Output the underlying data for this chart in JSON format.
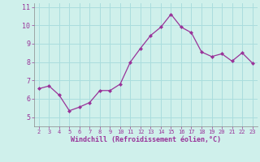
{
  "x": [
    2,
    3,
    4,
    5,
    6,
    7,
    8,
    9,
    10,
    11,
    12,
    13,
    14,
    15,
    16,
    17,
    18,
    19,
    20,
    21,
    22,
    23
  ],
  "y": [
    6.55,
    6.7,
    6.2,
    5.35,
    5.55,
    5.8,
    6.45,
    6.45,
    6.8,
    8.0,
    8.75,
    9.45,
    9.9,
    10.6,
    9.9,
    9.6,
    8.55,
    8.3,
    8.45,
    8.05,
    8.5,
    7.95
  ],
  "line_color": "#993399",
  "marker": "D",
  "marker_size": 2,
  "bg_color": "#cff0eb",
  "grid_color": "#aadddd",
  "xlabel": "Windchill (Refroidissement éolien,°C)",
  "xlabel_color": "#993399",
  "tick_color": "#993399",
  "xlim": [
    1.5,
    23.5
  ],
  "ylim": [
    4.5,
    11.2
  ],
  "yticks": [
    5,
    6,
    7,
    8,
    9,
    10,
    11
  ],
  "xticks": [
    2,
    3,
    4,
    5,
    6,
    7,
    8,
    9,
    10,
    11,
    12,
    13,
    14,
    15,
    16,
    17,
    18,
    19,
    20,
    21,
    22,
    23
  ]
}
